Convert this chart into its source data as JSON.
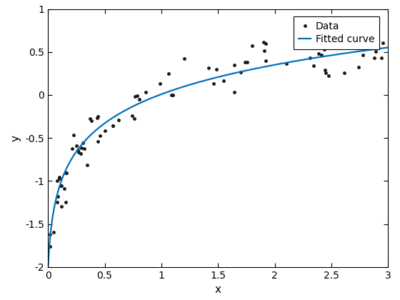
{
  "seed": 5,
  "n_points": 80,
  "x_min": 0.01,
  "x_max": 3.0,
  "fitted_a": 0.5,
  "fitted_b": 0.018,
  "noise_std": 0.13,
  "curve_color": "#0072BD",
  "data_color": "#1a1a1a",
  "xlabel": "x",
  "ylabel": "y",
  "xlim": [
    0,
    3
  ],
  "ylim": [
    -2,
    1
  ],
  "yticks": [
    -2,
    -1.5,
    -1,
    -0.5,
    0,
    0.5,
    1
  ],
  "xticks": [
    0,
    0.5,
    1,
    1.5,
    2,
    2.5,
    3
  ],
  "legend_labels": [
    "Data",
    "Fitted curve"
  ],
  "marker_size": 5,
  "linewidth": 1.6
}
